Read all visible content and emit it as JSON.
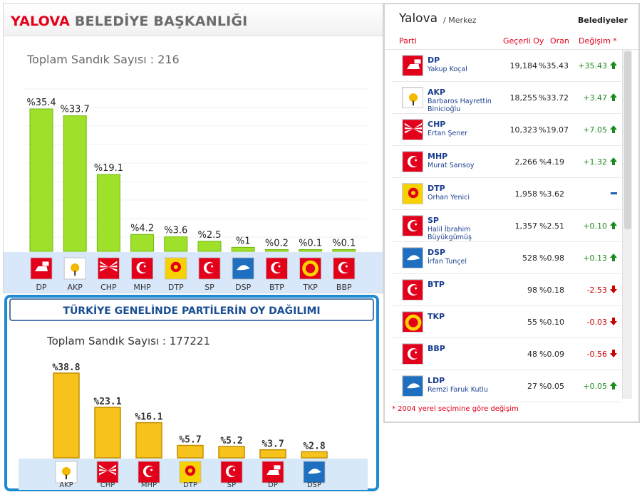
{
  "city_panel": {
    "title_city": "YALOVA",
    "title_rest": "BELEDİYE BAŞKANLIĞI",
    "total_label": "Toplam Sandık Sayısı : 216"
  },
  "national_panel": {
    "title": "TÜRKİYE GENELİNDE PARTİLERİN OY DAĞILIMI",
    "total_label": "Toplam Sandık Sayısı : 177221"
  },
  "results_panel": {
    "city": "Yalova",
    "district": "/ Merkez",
    "tag": "Belediyeler",
    "col_party": "Parti",
    "col_votes": "Geçerli Oy",
    "col_rate": "Oran",
    "col_change": "Değişim *",
    "note": "* 2004 yerel seçimine göre değişim",
    "rows": [
      {
        "party": "DP",
        "candidate": "Yakup Koçal",
        "votes": "19,184",
        "rate": "%35.43",
        "change": "+35.43",
        "dir": "up",
        "color": "#e2001a",
        "icon": "dp-logo"
      },
      {
        "party": "AKP",
        "candidate": "Barbaros Hayrettin Binicioğlu",
        "votes": "18,255",
        "rate": "%33.72",
        "change": "+3.47",
        "dir": "up",
        "color": "#f5b800",
        "icon": "akp-logo"
      },
      {
        "party": "CHP",
        "candidate": "Ertan Şener",
        "votes": "10,323",
        "rate": "%19.07",
        "change": "+7.05",
        "dir": "up",
        "color": "#e2001a",
        "icon": "chp-logo"
      },
      {
        "party": "MHP",
        "candidate": "Murat Sarısoy",
        "votes": "2,266",
        "rate": "%4.19",
        "change": "+1.32",
        "dir": "up",
        "color": "#e2001a",
        "icon": "mhp-logo"
      },
      {
        "party": "DTP",
        "candidate": "Orhan Yenici",
        "votes": "1,958",
        "rate": "%3.62",
        "change": "",
        "dir": "none",
        "color": "#f8d200",
        "icon": "dtp-logo"
      },
      {
        "party": "SP",
        "candidate": "Halil İbrahim Büyükgümüş",
        "votes": "1,357",
        "rate": "%2.51",
        "change": "+0.10",
        "dir": "up",
        "color": "#e2001a",
        "icon": "sp-logo"
      },
      {
        "party": "DSP",
        "candidate": "İrfan Tunçel",
        "votes": "528",
        "rate": "%0.98",
        "change": "+0.13",
        "dir": "up",
        "color": "#1f7ac6",
        "icon": "dsp-logo"
      },
      {
        "party": "BTP",
        "candidate": "",
        "votes": "98",
        "rate": "%0.18",
        "change": "-2.53",
        "dir": "down",
        "color": "#e2001a",
        "icon": "btp-logo"
      },
      {
        "party": "TKP",
        "candidate": "",
        "votes": "55",
        "rate": "%0.10",
        "change": "-0.03",
        "dir": "down",
        "color": "#e2001a",
        "icon": "tkp-logo"
      },
      {
        "party": "BBP",
        "candidate": "",
        "votes": "48",
        "rate": "%0.09",
        "change": "-0.56",
        "dir": "down",
        "color": "#e2001a",
        "icon": "bbp-logo"
      },
      {
        "party": "LDP",
        "candidate": "Remzi Faruk Kutlu",
        "votes": "27",
        "rate": "%0.05",
        "change": "+0.05",
        "dir": "up",
        "color": "#1b4fa0",
        "icon": "ldp-logo"
      }
    ]
  },
  "chart_data": [
    {
      "type": "bar",
      "title": "YALOVA BELEDİYE BAŞKANLIĞI",
      "categories": [
        "DP",
        "AKP",
        "CHP",
        "MHP",
        "DTP",
        "SP",
        "DSP",
        "BTP",
        "TKP",
        "BBP"
      ],
      "values": [
        35.4,
        33.7,
        19.1,
        4.2,
        3.6,
        2.5,
        1,
        0.2,
        0.1,
        0.1
      ],
      "labels": [
        "%35.4",
        "%33.7",
        "%19.1",
        "%4.2",
        "%3.6",
        "%2.5",
        "%1",
        "%0.2",
        "%0.1",
        "%0.1"
      ],
      "colors": {
        "bar": "#9ee02a",
        "bar_dark": "#6fb80f",
        "label_strip": "#d9e7fb"
      },
      "grid": true
    },
    {
      "type": "bar",
      "title": "TÜRKİYE GENELİNDE PARTİLERİN OY DAĞILIMI",
      "categories": [
        "AKP",
        "CHP",
        "MHP",
        "DTP",
        "SP",
        "DP",
        "DSP"
      ],
      "values": [
        38.8,
        23.1,
        16.1,
        5.7,
        5.2,
        3.7,
        2.8
      ],
      "labels": [
        "%38.8",
        "%23.1",
        "%16.1",
        "%5.7",
        "%5.2",
        "%3.7",
        "%2.8"
      ],
      "colors": {
        "bar": "#f7c21c",
        "bar_dark": "#c48f00",
        "frame": "#1e8ad2",
        "label_strip": "#d7e9f8"
      },
      "grid": false
    }
  ]
}
